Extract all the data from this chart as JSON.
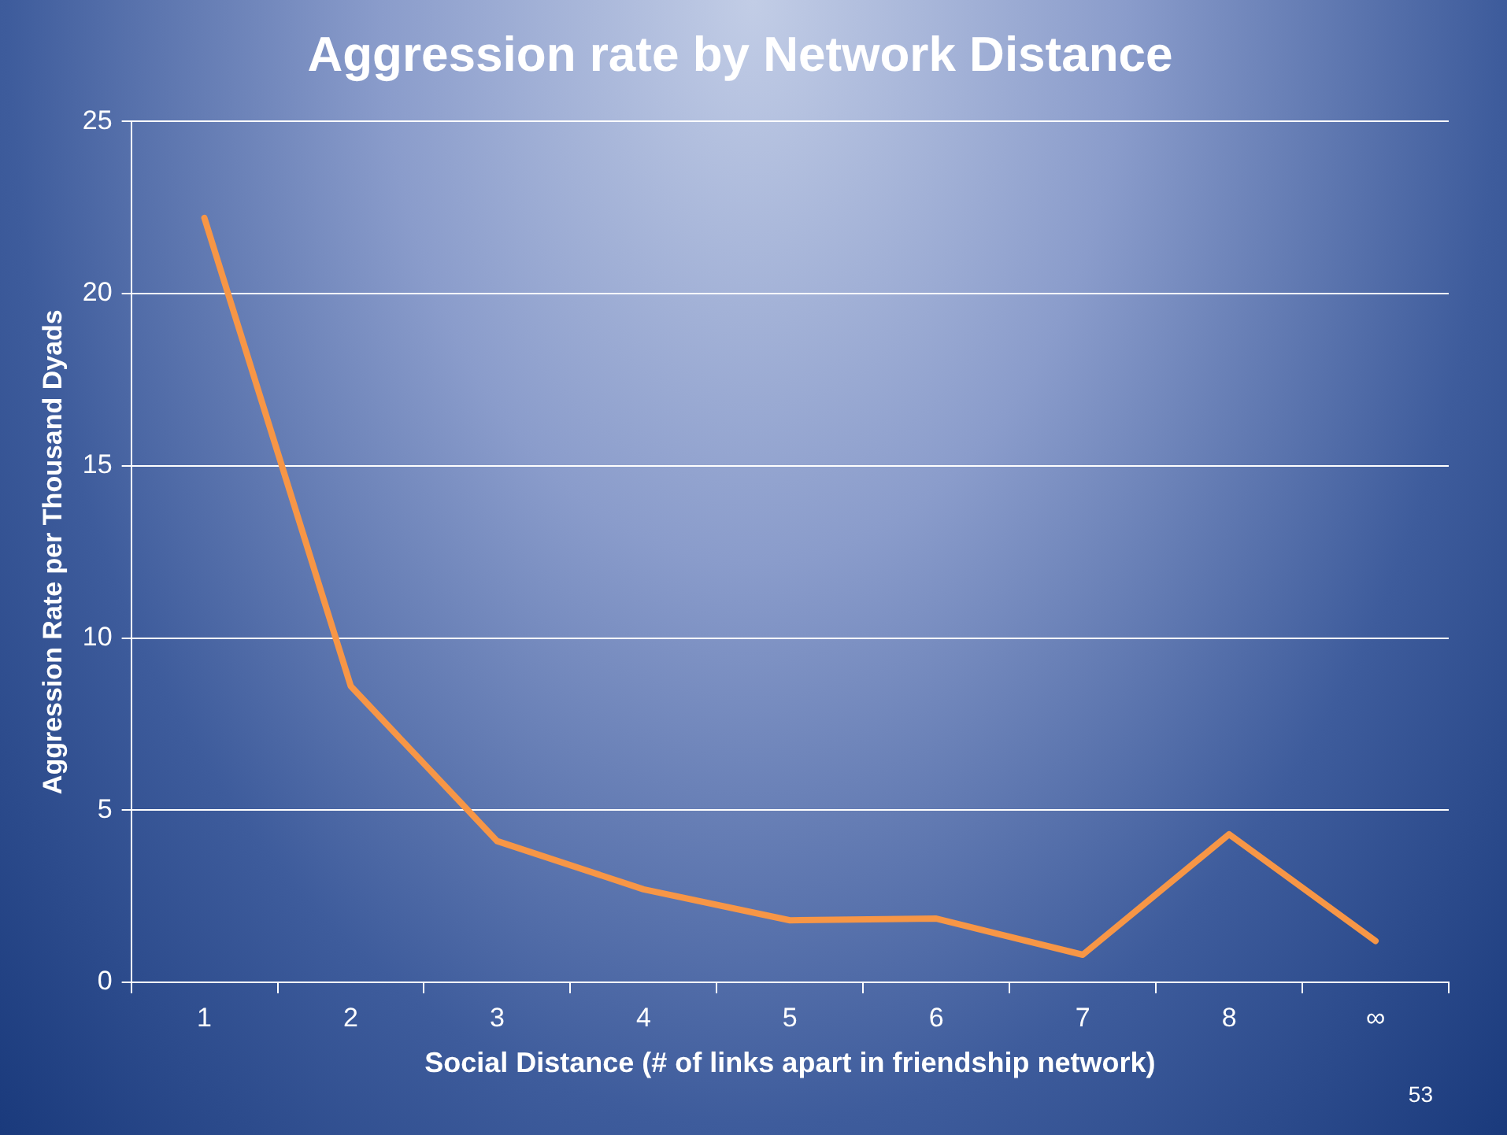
{
  "chart_data": {
    "type": "line",
    "title": "Aggression rate by Network Distance",
    "xlabel": "Social Distance (# of links apart in friendship network)",
    "ylabel": "Aggression Rate per Thousand Dyads",
    "categories": [
      "1",
      "2",
      "3",
      "4",
      "5",
      "6",
      "7",
      "8",
      "∞"
    ],
    "series": [
      {
        "color": "#f79646",
        "values": [
          22.2,
          8.6,
          4.1,
          2.7,
          1.8,
          1.85,
          0.8,
          4.3,
          1.2
        ]
      }
    ],
    "ylim": [
      0,
      25
    ],
    "yticks": [
      0,
      5,
      10,
      15,
      20,
      25
    ],
    "grid": "y",
    "legend": false,
    "marker": "none",
    "line_style": "solid",
    "annotations": [
      "53"
    ]
  }
}
